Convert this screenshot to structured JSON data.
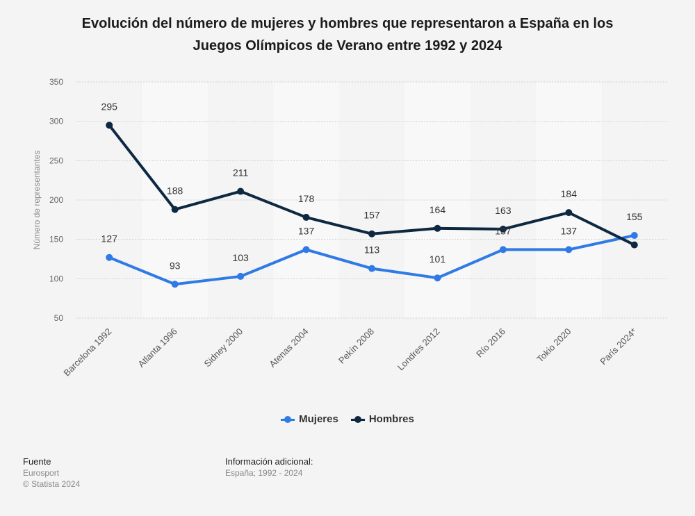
{
  "title_line1": "Evolución del número de mujeres y hombres que representaron a España en los",
  "title_line2": "Juegos Olímpicos de Verano entre 1992 y 2024",
  "colors": {
    "mujeres": "#2f7ae5",
    "hombres": "#0e2841",
    "grid": "#cfcfcf",
    "band": "#f8f8f8"
  },
  "chart_data": {
    "type": "line",
    "categories": [
      "Barcelona 1992",
      "Atlanta 1996",
      "Sidney 2000",
      "Atenas 2004",
      "Pekín 2008",
      "Londres 2012",
      "Río 2016",
      "Tokio 2020",
      "París 2024*"
    ],
    "series": [
      {
        "name": "Mujeres",
        "values": [
          127,
          93,
          103,
          137,
          113,
          101,
          137,
          137,
          155
        ]
      },
      {
        "name": "Hombres",
        "values": [
          295,
          188,
          211,
          178,
          157,
          164,
          163,
          184,
          143
        ]
      }
    ],
    "data_labels": {
      "Mujeres": [
        "127",
        "93",
        "103",
        "137",
        "113",
        "101",
        "137",
        "137",
        "155"
      ],
      "Hombres": [
        "295",
        "188",
        "211",
        "178",
        "157",
        "164",
        "163",
        "184",
        ""
      ]
    },
    "ylabel": "Número de representantes",
    "ylim": [
      50,
      350
    ],
    "yticks": [
      50,
      100,
      150,
      200,
      250,
      300,
      350
    ],
    "grid": true,
    "legend_position": "bottom-center"
  },
  "legend": {
    "mujeres": "Mujeres",
    "hombres": "Hombres"
  },
  "footer": {
    "source_head": "Fuente",
    "source_name": "Eurosport",
    "copyright": "© Statista 2024",
    "info_head": "Información adicional:",
    "info_text": "España; 1992 - 2024"
  }
}
